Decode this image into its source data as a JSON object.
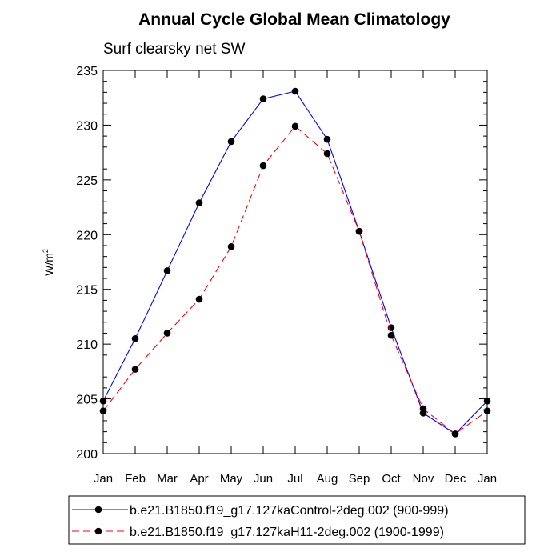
{
  "chart_data": {
    "type": "line",
    "title": "Annual Cycle Global Mean Climatology",
    "subtitle": "Surf clearsky net SW",
    "xlabel": "",
    "ylabel": "W/m",
    "ylabel_superscript": "2",
    "categories": [
      "Jan",
      "Feb",
      "Mar",
      "Apr",
      "May",
      "Jun",
      "Jul",
      "Aug",
      "Sep",
      "Oct",
      "Nov",
      "Dec",
      "Jan"
    ],
    "ylim": [
      200,
      235
    ],
    "yticks": [
      200,
      205,
      210,
      215,
      220,
      225,
      230,
      235
    ],
    "grid": false,
    "legend_position": "bottom",
    "series": [
      {
        "name": "b.e21.B1850.f19_g17.127kaControl-2deg.002 (900-999)",
        "color": "#0000ff",
        "dash": "solid",
        "values": [
          204.8,
          210.5,
          216.7,
          222.9,
          228.5,
          232.4,
          233.1,
          228.7,
          220.3,
          211.5,
          203.7,
          201.8,
          204.8
        ]
      },
      {
        "name": "b.e21.B1850.f19_g17.127kaH11-2deg.002 (1900-1999)",
        "color": "#ff0000",
        "dash": "dashed",
        "values": [
          203.9,
          207.7,
          211.0,
          214.1,
          218.9,
          226.3,
          229.9,
          227.4,
          220.3,
          210.8,
          204.1,
          201.8,
          203.9
        ]
      }
    ]
  }
}
